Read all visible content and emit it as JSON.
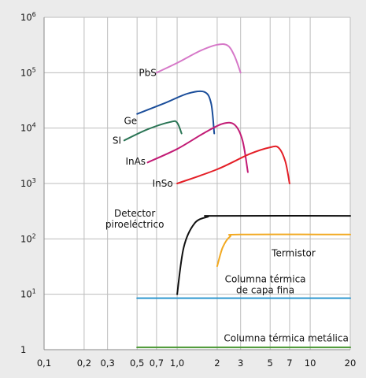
{
  "chart_data": {
    "type": "line",
    "x_scale": "log",
    "y_scale": "log",
    "xlim": [
      0.1,
      20
    ],
    "ylim": [
      1,
      1000000
    ],
    "grid": true,
    "background": "#ebebeb",
    "plot_background": "#ffffff",
    "x_ticks": [
      {
        "value": 0.1,
        "label": "0,1"
      },
      {
        "value": 0.2,
        "label": "0,2"
      },
      {
        "value": 0.3,
        "label": "0,3"
      },
      {
        "value": 0.5,
        "label": "0,5"
      },
      {
        "value": 0.7,
        "label": "0,7"
      },
      {
        "value": 1.0,
        "label": "1,0"
      },
      {
        "value": 2,
        "label": "2"
      },
      {
        "value": 3,
        "label": "3"
      },
      {
        "value": 5,
        "label": "5"
      },
      {
        "value": 7,
        "label": "7"
      },
      {
        "value": 10,
        "label": "10"
      },
      {
        "value": 20,
        "label": "20"
      }
    ],
    "y_ticks": [
      {
        "value": 1,
        "base": "1",
        "exp": ""
      },
      {
        "value": 10,
        "base": "10",
        "exp": "1"
      },
      {
        "value": 100,
        "base": "10",
        "exp": "2"
      },
      {
        "value": 1000,
        "base": "10",
        "exp": "3"
      },
      {
        "value": 10000,
        "base": "10",
        "exp": "4"
      },
      {
        "value": 100000,
        "base": "10",
        "exp": "5"
      },
      {
        "value": 1000000,
        "base": "10",
        "exp": "6"
      }
    ],
    "series": [
      {
        "name": "PbS",
        "color": "#d678c8",
        "label_at": [
          0.7,
          100000
        ],
        "label_align": "end",
        "points": [
          [
            0.7,
            100000
          ],
          [
            1.0,
            150000
          ],
          [
            1.5,
            250000
          ],
          [
            2.0,
            320000
          ],
          [
            2.4,
            310000
          ],
          [
            2.7,
            200000
          ],
          [
            3.0,
            100000
          ]
        ]
      },
      {
        "name": "Ge",
        "color": "#1a4d9a",
        "label_at": [
          0.5,
          13500
        ],
        "label_align": "end",
        "points": [
          [
            0.5,
            18000
          ],
          [
            0.8,
            28000
          ],
          [
            1.2,
            42000
          ],
          [
            1.6,
            45000
          ],
          [
            1.8,
            28000
          ],
          [
            1.9,
            8000
          ]
        ]
      },
      {
        "name": "SI",
        "color": "#2a7555",
        "label_at": [
          0.38,
          6000
        ],
        "label_align": "end",
        "points": [
          [
            0.4,
            6000
          ],
          [
            0.6,
            9500
          ],
          [
            0.9,
            13000
          ],
          [
            1.0,
            12500
          ],
          [
            1.08,
            8000
          ]
        ]
      },
      {
        "name": "InAs",
        "color": "#c21b75",
        "label_at": [
          0.58,
          2500
        ],
        "label_align": "end",
        "points": [
          [
            0.6,
            2400
          ],
          [
            1.0,
            4200
          ],
          [
            1.6,
            8200
          ],
          [
            2.2,
            12000
          ],
          [
            2.7,
            11500
          ],
          [
            3.1,
            6000
          ],
          [
            3.4,
            1600
          ]
        ]
      },
      {
        "name": "InSo",
        "color": "#e41e26",
        "label_at": [
          0.93,
          1000
        ],
        "label_align": "end",
        "points": [
          [
            1.0,
            1000
          ],
          [
            2.0,
            1800
          ],
          [
            3.5,
            3400
          ],
          [
            5.0,
            4500
          ],
          [
            5.8,
            4400
          ],
          [
            6.5,
            2500
          ],
          [
            7.0,
            1000
          ]
        ]
      },
      {
        "name": "Detector piroeléctrico",
        "color": "#111111",
        "label_lines": [
          "Detector",
          "piroeléctrico"
        ],
        "label_at": [
          0.48,
          230
        ],
        "label_align": "middle",
        "points": [
          [
            1.0,
            10
          ],
          [
            1.12,
            70
          ],
          [
            1.35,
            190
          ],
          [
            1.7,
            250
          ],
          [
            2.0,
            260
          ],
          [
            20,
            260
          ]
        ]
      },
      {
        "name": "Termistor",
        "color": "#f2a921",
        "label_at": [
          7.5,
          55
        ],
        "label_align": "middle",
        "points": [
          [
            2.0,
            32
          ],
          [
            2.2,
            70
          ],
          [
            2.5,
            110
          ],
          [
            3.0,
            120
          ],
          [
            20,
            120
          ]
        ]
      },
      {
        "name": "Columna térmica de capa fina",
        "color": "#2f98cf",
        "label_lines": [
          "Columna térmica",
          "de capa fina"
        ],
        "label_at": [
          4.6,
          15
        ],
        "label_align": "middle",
        "points": [
          [
            0.5,
            8.5
          ],
          [
            20,
            8.5
          ]
        ]
      },
      {
        "name": "Columna térmica metálica",
        "color": "#4e9a37",
        "label_at": [
          6.6,
          1.6
        ],
        "label_align": "middle",
        "points": [
          [
            0.5,
            1.1
          ],
          [
            20,
            1.1
          ]
        ]
      }
    ]
  }
}
